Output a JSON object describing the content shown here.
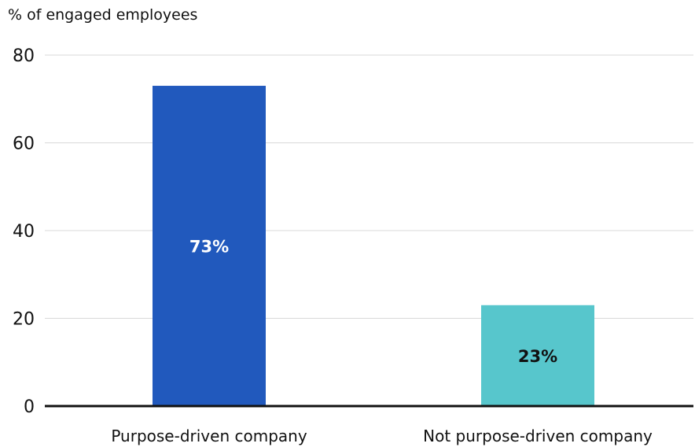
{
  "chart_data": {
    "type": "bar",
    "title": "",
    "xlabel": "",
    "ylabel": "% of engaged employees",
    "ylim": [
      0,
      80
    ],
    "yticks": [
      "0",
      "20",
      "40",
      "60",
      "80"
    ],
    "grid": true,
    "categories": [
      "Purpose-driven company",
      "Not purpose-driven company"
    ],
    "values": [
      73,
      23
    ],
    "data_labels": [
      "73%",
      "23%"
    ],
    "colors": [
      "#2159bd",
      "#57c6cc"
    ],
    "label_colors": [
      "#ffffff",
      "#111111"
    ]
  }
}
